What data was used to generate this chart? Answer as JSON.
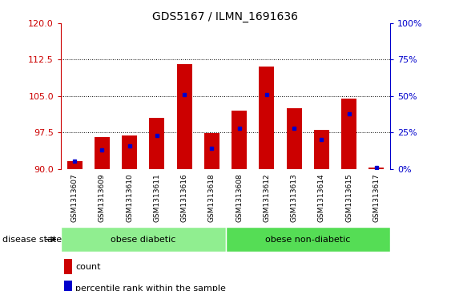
{
  "title": "GDS5167 / ILMN_1691636",
  "samples": [
    "GSM1313607",
    "GSM1313609",
    "GSM1313610",
    "GSM1313611",
    "GSM1313616",
    "GSM1313618",
    "GSM1313608",
    "GSM1313612",
    "GSM1313613",
    "GSM1313614",
    "GSM1313615",
    "GSM1313617"
  ],
  "count_values": [
    91.5,
    96.5,
    96.8,
    100.5,
    111.5,
    97.3,
    102.0,
    111.0,
    102.5,
    98.0,
    104.5,
    90.2
  ],
  "percentile_values": [
    5,
    13,
    16,
    23,
    51,
    14,
    28,
    51,
    28,
    20,
    38,
    1
  ],
  "ylim_left": [
    90,
    120
  ],
  "ylim_right": [
    0,
    100
  ],
  "yticks_left": [
    90,
    97.5,
    105,
    112.5,
    120
  ],
  "yticks_right": [
    0,
    25,
    50,
    75,
    100
  ],
  "left_color": "#cc0000",
  "right_color": "#0000cc",
  "bar_width": 0.55,
  "baseline": 90,
  "groups": [
    {
      "label": "obese diabetic",
      "start": 0,
      "end": 5
    },
    {
      "label": "obese non-diabetic",
      "start": 6,
      "end": 11
    }
  ],
  "group_colors": [
    "#90ee90",
    "#55dd55"
  ],
  "group_row_label": "disease state",
  "legend_count_label": "count",
  "legend_percentile_label": "percentile rank within the sample",
  "background_color": "#ffffff",
  "tick_bg": "#c8c8c8",
  "grid_color": "#000000",
  "grid_linestyle": ":",
  "grid_linewidth": 0.7
}
